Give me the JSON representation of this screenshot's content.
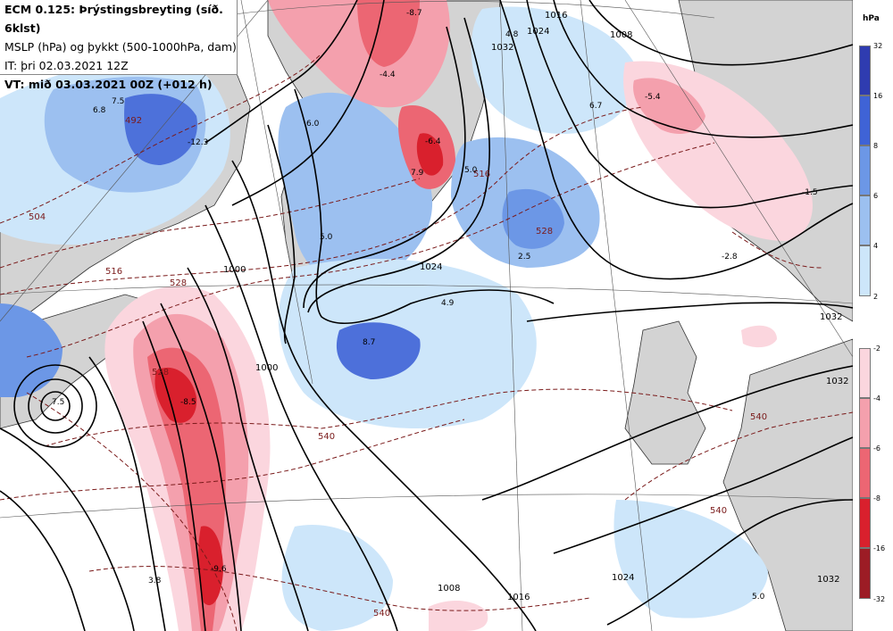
{
  "header": {
    "line1": "ECM 0.125: Þrýstingsbreyting (síð. 6klst)",
    "line2": "MSLP (hPa) og þykkt (500-1000hPa, dam)",
    "line3": "IT: þri 02.03.2021 12Z",
    "line4": "VT: mið 03.03.2021 00Z (+012 h)"
  },
  "legend": {
    "unit": "hPa",
    "positive": [
      {
        "label": "32",
        "color": "#2f3cb0"
      },
      {
        "label": "16",
        "color": "#3f63d6"
      },
      {
        "label": "8",
        "color": "#6c97e6"
      },
      {
        "label": "6",
        "color": "#9cc0f0"
      },
      {
        "label": "4",
        "color": "#cde6fa"
      },
      {
        "label": "2",
        "color": ""
      }
    ],
    "negative": [
      {
        "label": "-2",
        "color": "#fbd6de"
      },
      {
        "label": "-4",
        "color": "#f4a0ad"
      },
      {
        "label": "-6",
        "color": "#ec6673"
      },
      {
        "label": "-8",
        "color": "#d9202d"
      },
      {
        "label": "-16",
        "color": "#9c1c25"
      },
      {
        "label": "-32",
        "color": ""
      }
    ]
  },
  "map_labels": {
    "centers": [
      "7.5",
      "6.8",
      "-12.3",
      "-8.7",
      "-4.4",
      "6.7",
      "-5.4",
      "2.5",
      "5.0",
      "4.9",
      "8.7",
      "-8.5",
      "-9.6",
      "3.8",
      "4.8",
      "6.0",
      "-1.5",
      "5.0",
      "7.9",
      "-2.8",
      "-6.4",
      "7.5",
      "5.0"
    ],
    "isobars": [
      "1024",
      "1008",
      "1016",
      "1032",
      "1000",
      "1024",
      "1032",
      "1032",
      "1000",
      "1008",
      "1016",
      "1024",
      "1032"
    ],
    "thickness": [
      "492",
      "504",
      "516",
      "528",
      "540",
      "540",
      "540",
      "528",
      "516",
      "528",
      "540"
    ]
  }
}
